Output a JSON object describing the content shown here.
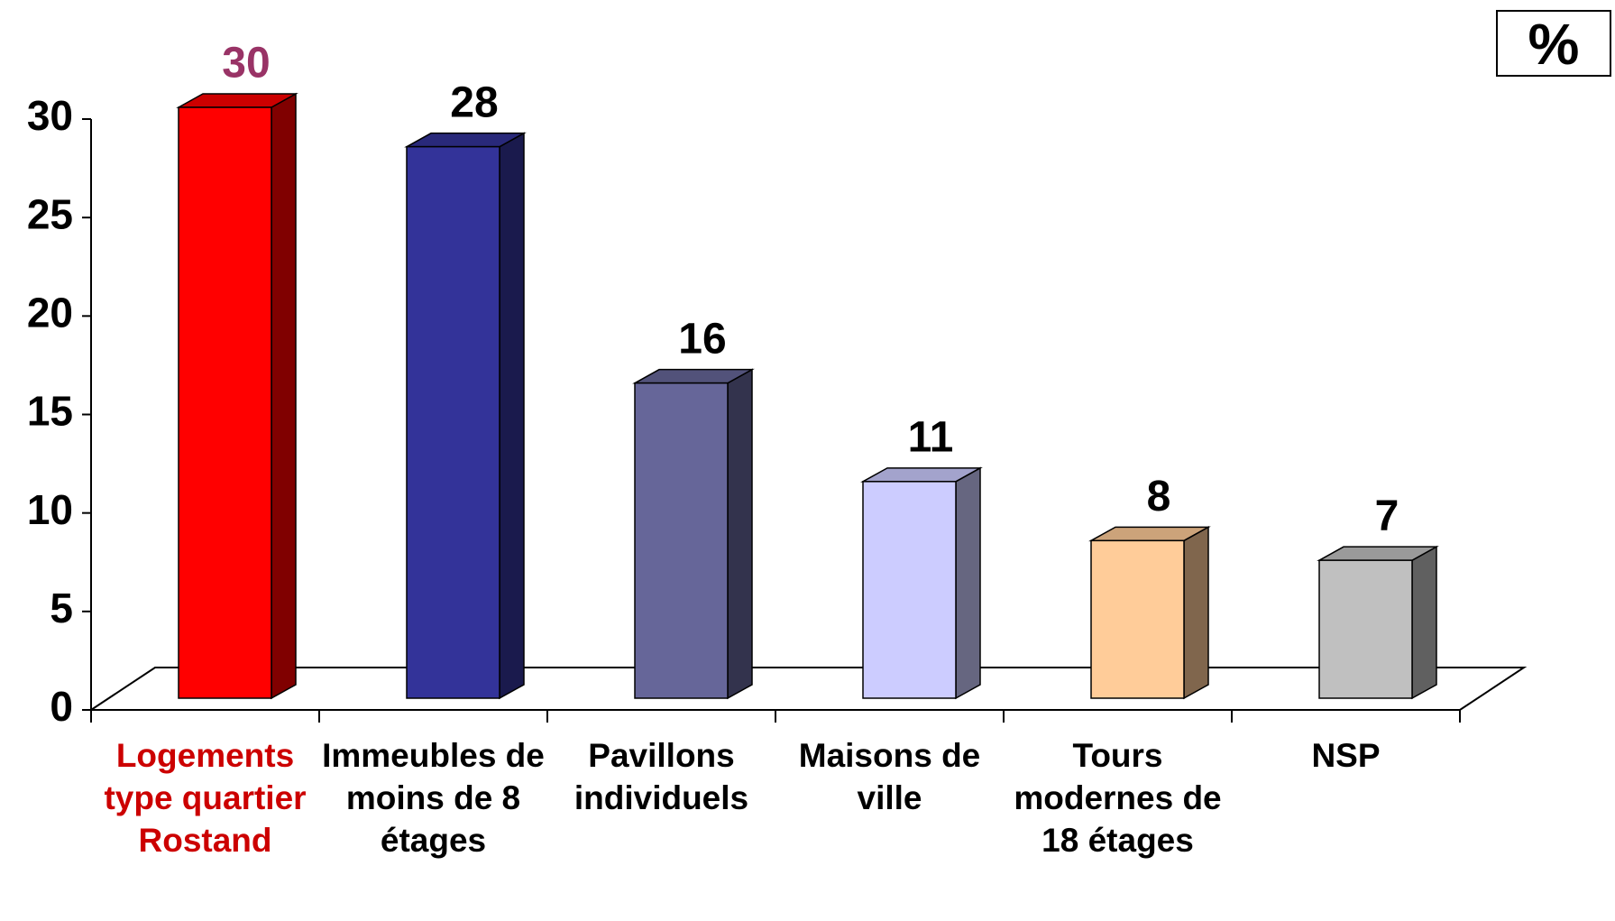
{
  "chart_data": {
    "type": "bar3d",
    "unit_label": "%",
    "categories": [
      "Logements type quartier Rostand",
      "Immeubles de moins de 8 étages",
      "Pavillons individuels",
      "Maisons de ville",
      "Tours modernes de 18 étages",
      "NSP"
    ],
    "values": [
      30,
      28,
      16,
      11,
      8,
      7
    ],
    "colors": [
      "#ff0000",
      "#333399",
      "#666699",
      "#ccccff",
      "#ffcc99",
      "#c0c0c0"
    ],
    "category_label_colors": [
      "#cc0000",
      "#000000",
      "#000000",
      "#000000",
      "#000000",
      "#000000"
    ],
    "value_label_colors": [
      "#993366",
      "#000000",
      "#000000",
      "#000000",
      "#000000",
      "#000000"
    ],
    "ylim": [
      0,
      30
    ],
    "yticks": [
      0,
      5,
      10,
      15,
      20,
      25,
      30
    ]
  }
}
